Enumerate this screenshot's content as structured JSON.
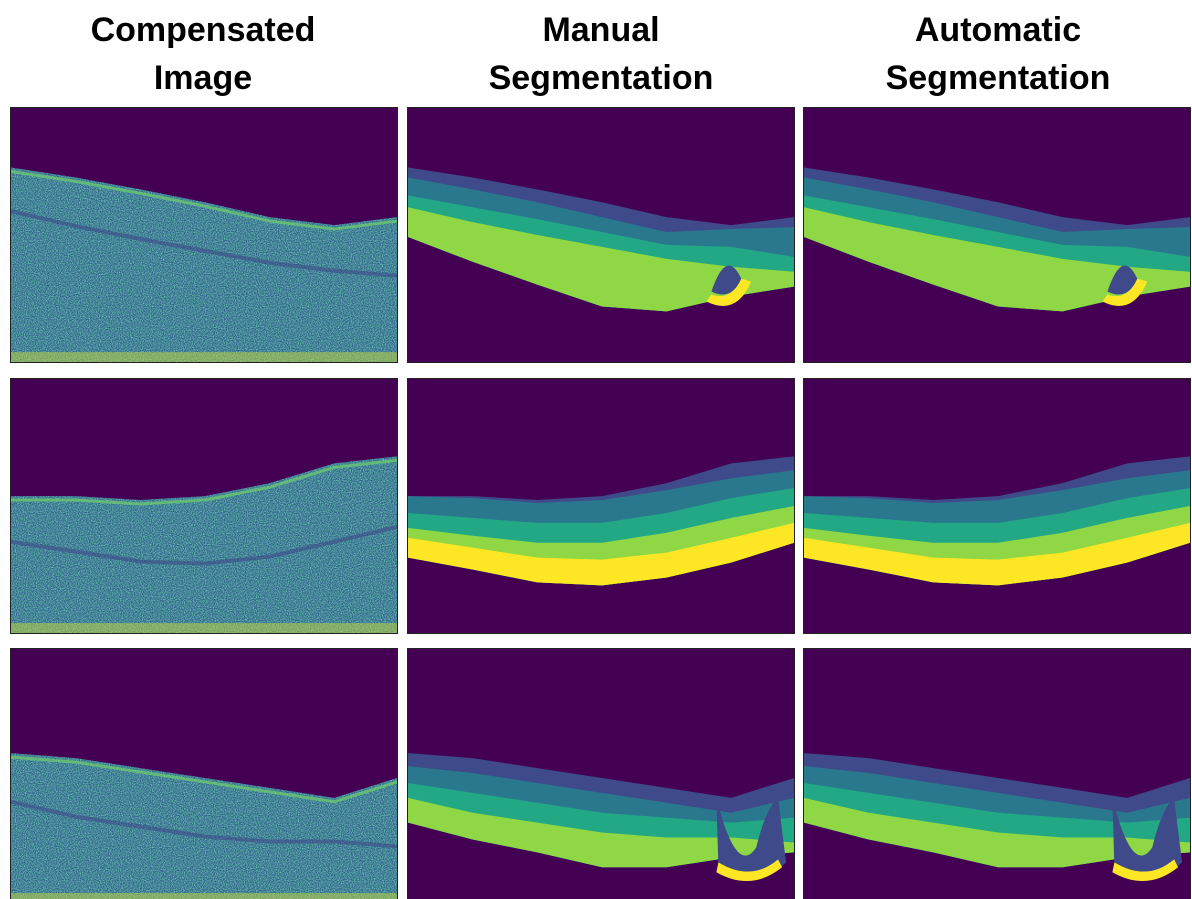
{
  "headers": [
    "Compensated Image",
    "Manual Segmentation",
    "Automatic Segmentation"
  ]
}
